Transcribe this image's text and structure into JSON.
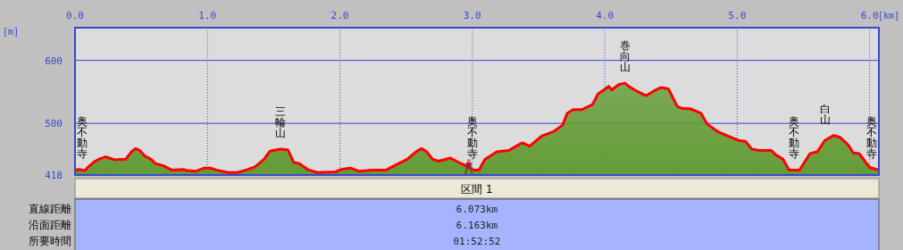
{
  "chart_data": {
    "type": "area",
    "xlabel": "[km]",
    "ylabel": "[m]",
    "xlim": [
      0,
      6.07
    ],
    "ylim": [
      418,
      652
    ],
    "xticks": [
      {
        "value": 0,
        "label": "0.0"
      },
      {
        "value": 1,
        "label": "1.0"
      },
      {
        "value": 2,
        "label": "2.0"
      },
      {
        "value": 3,
        "label": "3.0"
      },
      {
        "value": 4,
        "label": "4.0"
      },
      {
        "value": 5,
        "label": "5.0"
      },
      {
        "value": 6,
        "label": "6.0"
      }
    ],
    "yticks": [
      418,
      500,
      600
    ],
    "grid": true,
    "series": [
      {
        "color": "#649c36",
        "x": [
          0,
          0.034,
          0.074,
          0.101,
          0.146,
          0.191,
          0.231,
          0.258,
          0.303,
          0.348,
          0.382,
          0.427,
          0.456,
          0.483,
          0.528,
          0.573,
          0.607,
          0.663,
          0.73,
          0.82,
          0.843,
          0.91,
          0.978,
          1.022,
          1.067,
          1.157,
          1.225,
          1.292,
          1.36,
          1.427,
          1.472,
          1.551,
          1.607,
          1.652,
          1.695,
          1.763,
          1.831,
          1.966,
          2.011,
          2.079,
          2.147,
          2.237,
          2.35,
          2.44,
          2.508,
          2.576,
          2.616,
          2.655,
          2.7,
          2.745,
          2.835,
          2.88,
          2.948,
          2.982,
          3.016,
          3.05,
          3.095,
          3.185,
          3.275,
          3.332,
          3.377,
          3.433,
          3.524,
          3.614,
          3.682,
          3.716,
          3.761,
          3.829,
          3.908,
          3.95,
          4.007,
          4.029,
          4.052,
          4.108,
          4.153,
          4.187,
          4.243,
          4.311,
          4.367,
          4.423,
          4.48,
          4.547,
          4.581,
          4.649,
          4.727,
          4.773,
          4.851,
          4.93,
          5.009,
          5.065,
          5.11,
          5.167,
          5.257,
          5.291,
          5.347,
          5.392,
          5.471,
          5.55,
          5.606,
          5.662,
          5.73,
          5.775,
          5.842,
          5.876,
          5.921,
          6.0,
          6.068
        ],
        "values": [
          426,
          427,
          425,
          431,
          439,
          444,
          447,
          445,
          442,
          443,
          443,
          455,
          460,
          458,
          448,
          443,
          436,
          433,
          426,
          427,
          425,
          424,
          429,
          429,
          426,
          422,
          422,
          426,
          431,
          443,
          456,
          459,
          458,
          438,
          436,
          426,
          422,
          423,
          427,
          429,
          424,
          426,
          426,
          436,
          443,
          455,
          460,
          455,
          443,
          440,
          445,
          440,
          433,
          428,
          426,
          426,
          443,
          455,
          457,
          464,
          469,
          464,
          480,
          487,
          497,
          516,
          522,
          522,
          530,
          547,
          555,
          559,
          553,
          562,
          564,
          558,
          551,
          544,
          551,
          557,
          555,
          527,
          524,
          523,
          516,
          499,
          487,
          480,
          473,
          471,
          459,
          457,
          457,
          450,
          443,
          426,
          426,
          452,
          455,
          473,
          481,
          478,
          465,
          453,
          452,
          430,
          426
        ]
      }
    ],
    "annotations": [
      {
        "text": "奥不動寺",
        "x": 0,
        "y": 426
      },
      {
        "text": "三輪山",
        "x": 1.551,
        "y": 459
      },
      {
        "text": "奥不動寺",
        "x": 3.0,
        "y": 426
      },
      {
        "text": "巻向山",
        "x": 4.153,
        "y": 564
      },
      {
        "text": "奥不動寺",
        "x": 5.43,
        "y": 426
      },
      {
        "text": "白山",
        "x": 5.662,
        "y": 481
      },
      {
        "text": "奥不動寺",
        "x": 6.04,
        "y": 426
      },
      "区間 1",
      "直線距離",
      "沿面距離",
      "所要時間",
      "6.073km",
      "6.163km",
      "01:52:52"
    ]
  }
}
